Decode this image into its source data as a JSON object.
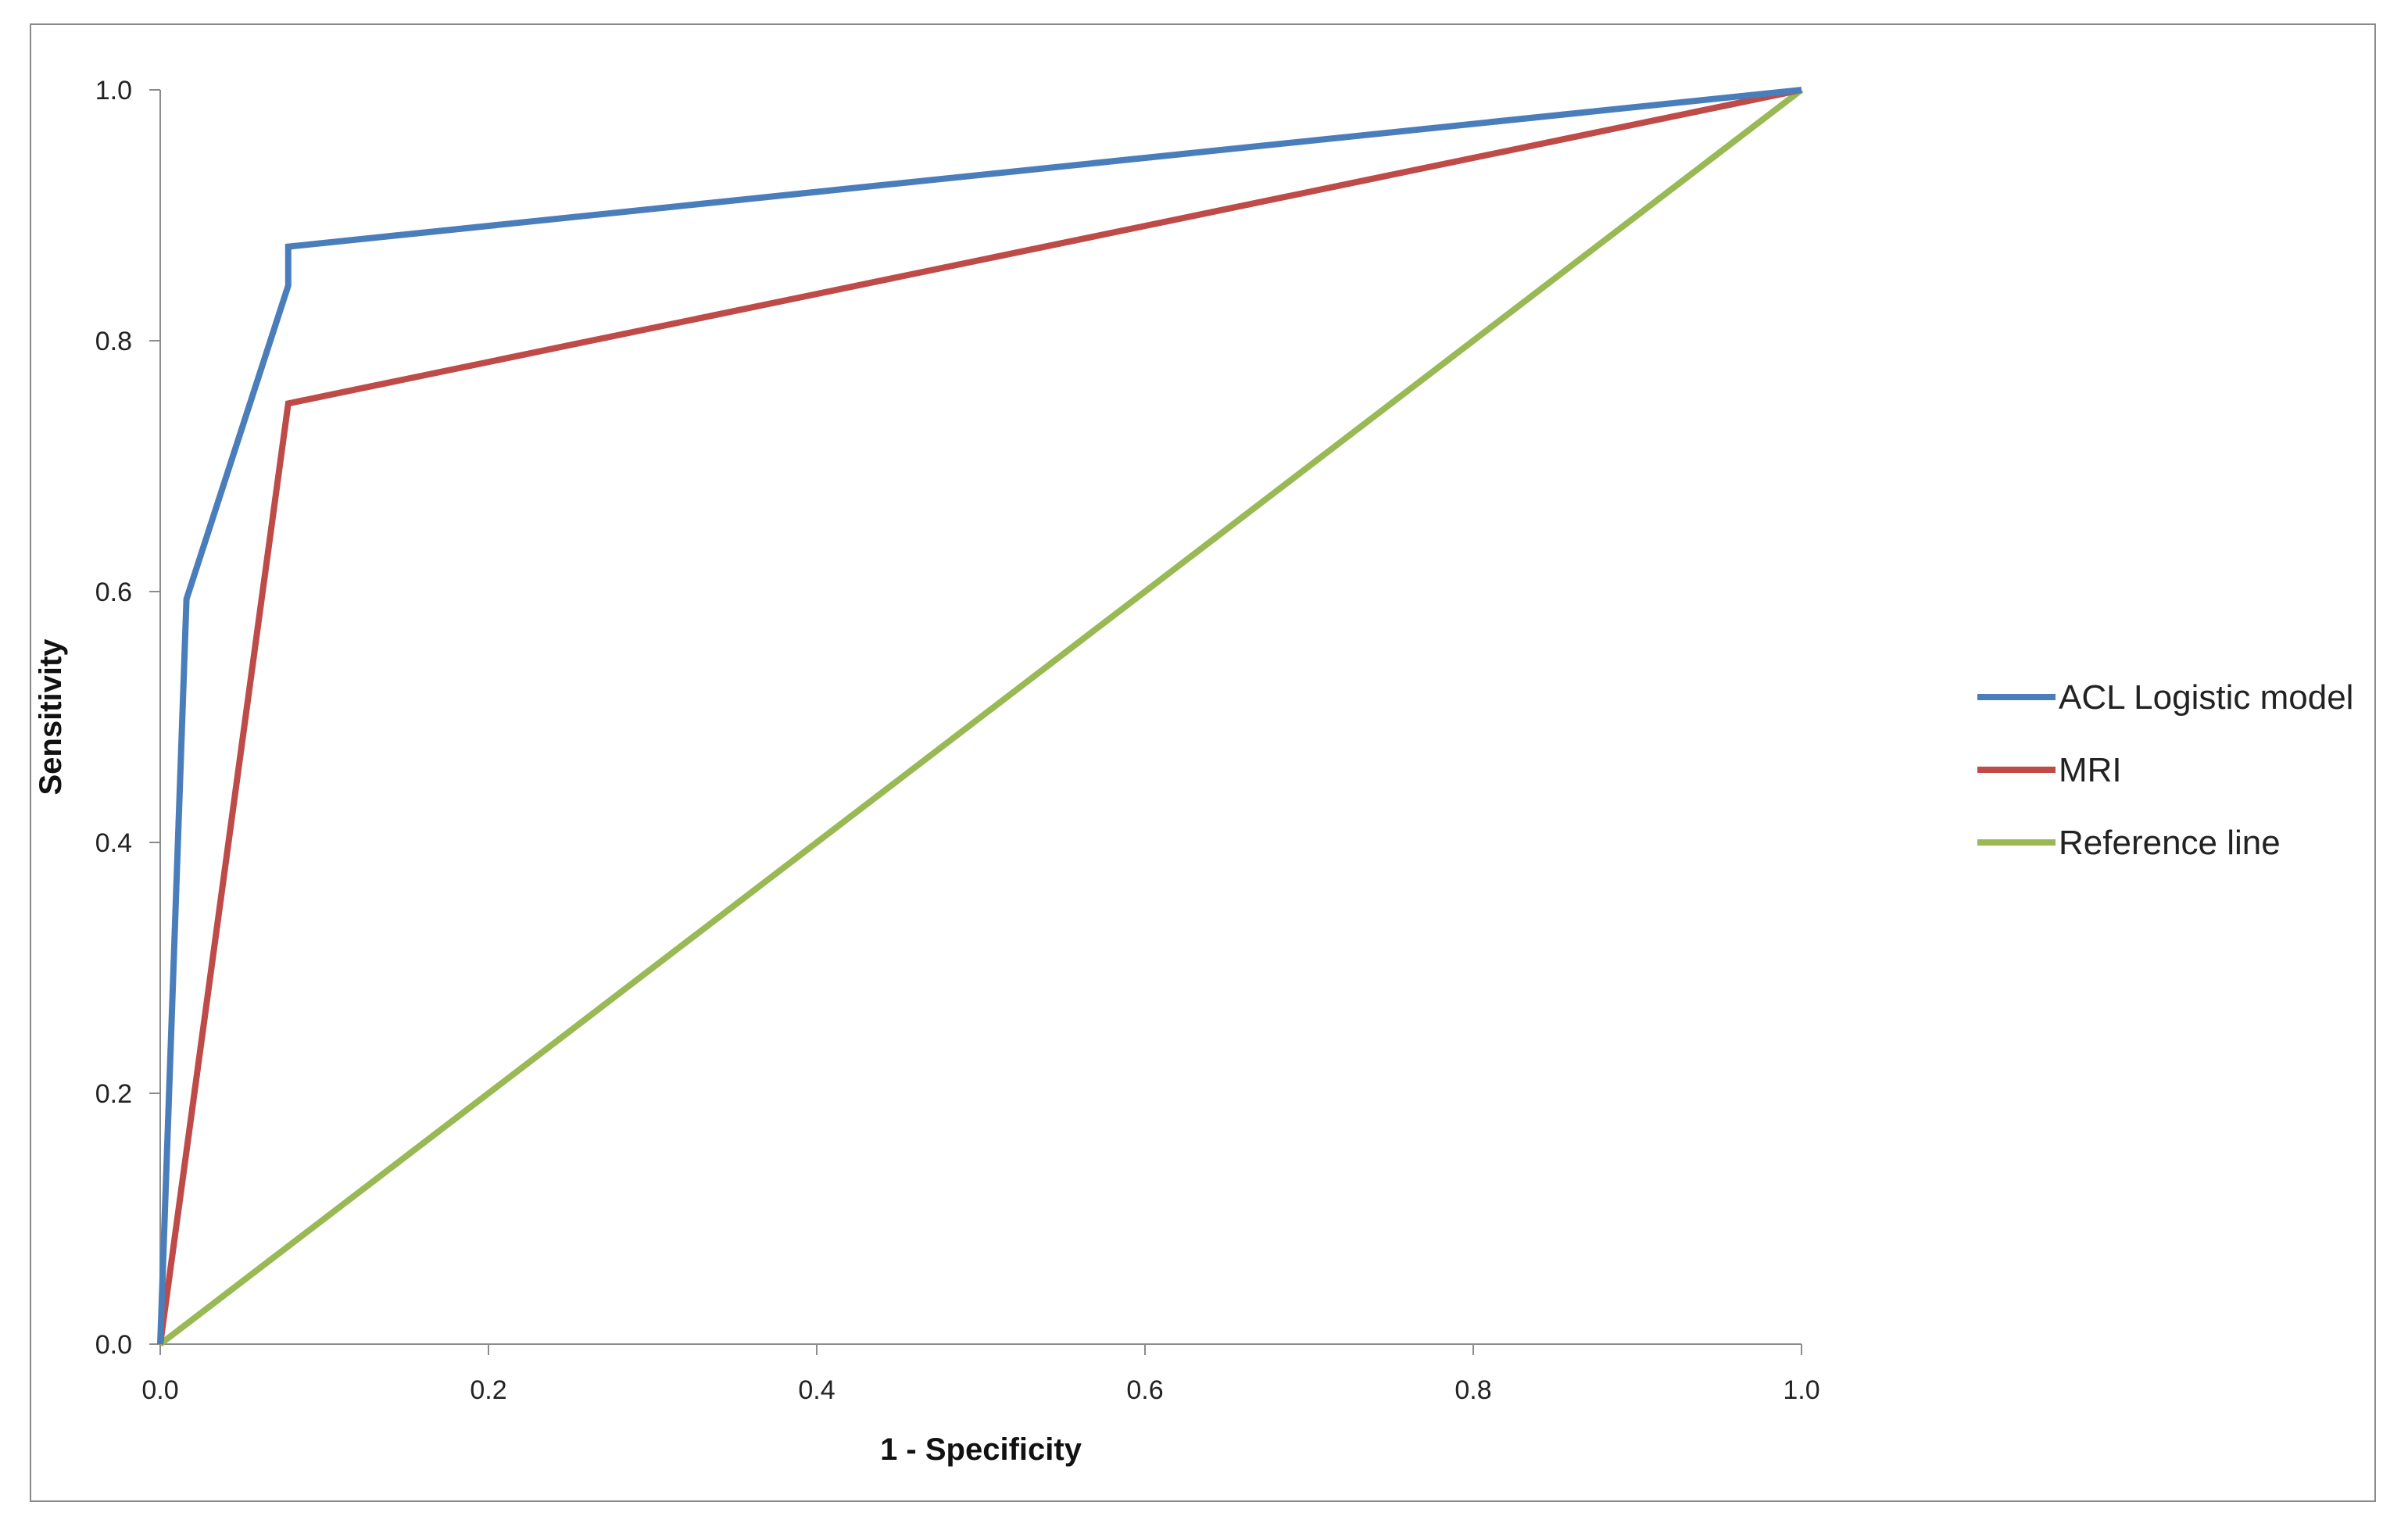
{
  "chart_data": {
    "type": "line",
    "xlabel": "1 - Specificity",
    "ylabel": "Sensitivity",
    "xlim": [
      0,
      1
    ],
    "ylim": [
      0,
      1
    ],
    "x_ticks": [
      0.0,
      0.2,
      0.4,
      0.6,
      0.8,
      1.0
    ],
    "y_ticks": [
      0.0,
      0.2,
      0.4,
      0.6,
      0.8,
      1.0
    ],
    "x_tick_labels": [
      "0.0",
      "0.2",
      "0.4",
      "0.6",
      "0.8",
      "1.0"
    ],
    "y_tick_labels": [
      "0.0",
      "0.2",
      "0.4",
      "0.6",
      "0.8",
      "1.0"
    ],
    "grid": false,
    "legend_position": "right",
    "series": [
      {
        "name": "ACL Logistic model",
        "color": "#4a7ebb",
        "points": [
          [
            0.0,
            0.0
          ],
          [
            0.016,
            0.594
          ],
          [
            0.078,
            0.844
          ],
          [
            0.078,
            0.875
          ],
          [
            1.0,
            1.0
          ]
        ]
      },
      {
        "name": "MRI",
        "color": "#be4b48",
        "points": [
          [
            0.0,
            0.0
          ],
          [
            0.078,
            0.75
          ],
          [
            1.0,
            1.0
          ]
        ]
      },
      {
        "name": "Reference line",
        "color": "#98b954",
        "points": [
          [
            0.0,
            0.0
          ],
          [
            1.0,
            1.0
          ]
        ]
      }
    ]
  }
}
